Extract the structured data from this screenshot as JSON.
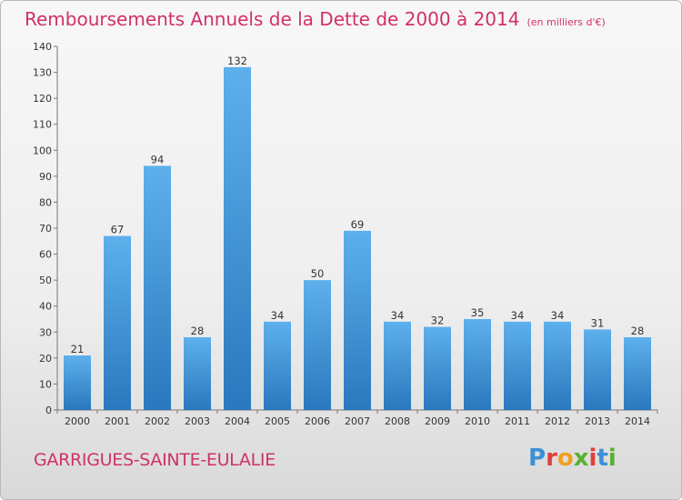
{
  "header": {
    "title": "Remboursements Annuels de la Dette de 2000 à 2014",
    "unit": "(en milliers d'€)"
  },
  "footer": {
    "city": "GARRIGUES-SAINTE-EULALIE",
    "logo_letters": [
      "P",
      "r",
      "o",
      "x",
      "i",
      "t",
      "i"
    ],
    "logo_colors": [
      "#3b8fd6",
      "#e0403a",
      "#f0a020",
      "#58b030",
      "#e0403a",
      "#3b8fd6",
      "#58b030"
    ]
  },
  "chart_data": {
    "type": "bar",
    "title": "Remboursements Annuels de la Dette de 2000 à 2014",
    "xlabel": "",
    "ylabel": "",
    "categories": [
      "2000",
      "2001",
      "2002",
      "2003",
      "2004",
      "2005",
      "2006",
      "2007",
      "2008",
      "2009",
      "2010",
      "2011",
      "2012",
      "2013",
      "2014"
    ],
    "values": [
      21,
      67,
      94,
      28,
      132,
      34,
      50,
      69,
      34,
      32,
      35,
      34,
      34,
      31,
      28
    ],
    "ylim": [
      0,
      140
    ],
    "yticks": [
      0,
      10,
      20,
      30,
      40,
      50,
      60,
      70,
      80,
      90,
      100,
      110,
      120,
      130,
      140
    ],
    "grid": false,
    "bar_color": "#3a92d8"
  }
}
